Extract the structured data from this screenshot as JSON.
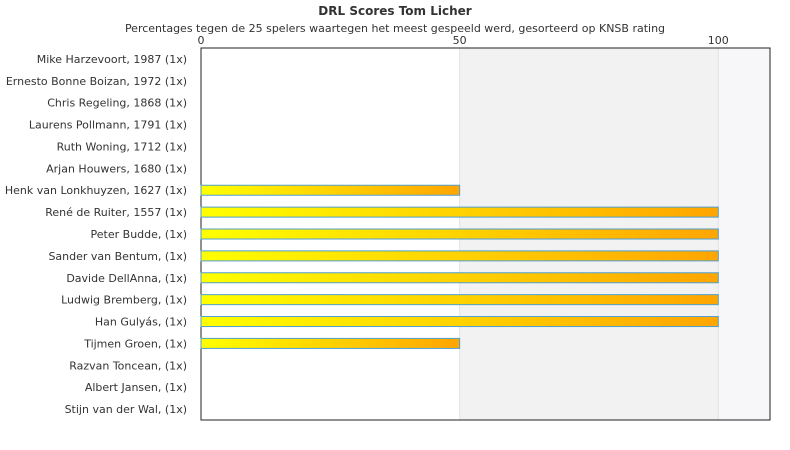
{
  "chart_data": {
    "type": "bar",
    "orientation": "horizontal",
    "title": "DRL Scores Tom Licher",
    "subtitle": "Percentages tegen de 25 spelers waartegen het meest gespeeld werd, gesorteerd op KNSB rating",
    "categories": [
      "Mike Harzevoort, 1987 (1x)",
      "Ernesto Bonne Boizan, 1972 (1x)",
      "Chris Regeling, 1868 (1x)",
      "Laurens Pollmann, 1791 (1x)",
      "Ruth Woning, 1712 (1x)",
      "Arjan Houwers, 1680 (1x)",
      "Henk van Lonkhuyzen, 1627 (1x)",
      "René de Ruiter, 1557 (1x)",
      "Peter Budde,  (1x)",
      "Sander van Bentum,  (1x)",
      "Davide DellAnna,  (1x)",
      "Ludwig Bremberg,  (1x)",
      "Han Gulyás,  (1x)",
      "Tijmen Groen,  (1x)",
      "Razvan Toncean,  (1x)",
      "Albert Jansen,  (1x)",
      "Stijn van der Wal,  (1x)"
    ],
    "values": [
      0,
      0,
      0,
      0,
      0,
      0,
      50,
      100,
      100,
      100,
      100,
      100,
      100,
      50,
      0,
      0,
      0
    ],
    "xlim": [
      0,
      110
    ],
    "x_ticks": [
      0,
      50,
      100
    ],
    "axis_position": "top",
    "grid": "alternating vertical bands",
    "bar_gradient": [
      "#ffff00",
      "#ffa500"
    ],
    "bar_stroke": "#4f9fcf",
    "band_colors": [
      "#ffffff",
      "#f2f2f2",
      "#f7f7fa"
    ]
  }
}
